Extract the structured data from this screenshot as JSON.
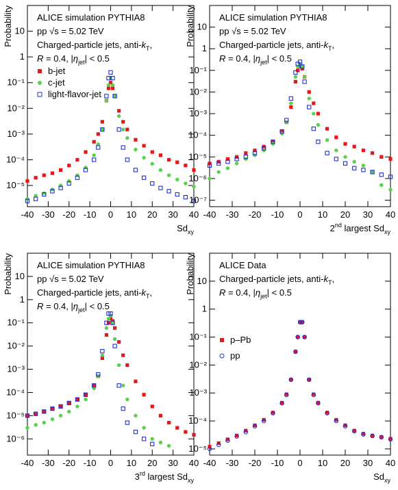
{
  "chart_data": [
    {
      "type": "scatter",
      "log_y": true,
      "ylabel": "Probability",
      "xlabel": [
        {
          "text": "Sd"
        },
        {
          "text": "xy",
          "script": "sub"
        }
      ],
      "annotation": [
        [
          {
            "text": "ALICE simulation PYTHIA8"
          }
        ],
        [
          {
            "text": "pp √s = 5.02 TeV"
          }
        ],
        [
          {
            "text": "Charged-particle jets, anti-"
          },
          {
            "text": "k",
            "italic": true
          },
          {
            "text": "T",
            "script": "sub"
          },
          {
            "text": ","
          }
        ],
        [
          {
            "text": "R",
            "italic": true
          },
          {
            "text": " = 0.4, |"
          },
          {
            "text": "η",
            "italic": true
          },
          {
            "text": "jet",
            "script": "sub"
          },
          {
            "text": "| < 0.5"
          }
        ]
      ],
      "legend": "upper left",
      "xlim": [
        -40,
        40
      ],
      "xticks": [
        -40,
        -30,
        -20,
        -10,
        0,
        10,
        20,
        30,
        40
      ],
      "ylim": [
        1.5e-06,
        100
      ],
      "yticks": [
        {
          "value": 1e-05,
          "label": "10⁻⁵"
        },
        {
          "value": 0.0001,
          "label": "10⁻⁴"
        },
        {
          "value": 0.001,
          "label": "10⁻³"
        },
        {
          "value": 0.01,
          "label": "10⁻²"
        },
        {
          "value": 0.1,
          "label": "10⁻¹"
        },
        1,
        10
      ],
      "x": [
        -40,
        -36,
        -32,
        -28,
        -24,
        -20,
        -16,
        -12,
        -8,
        -6,
        -4,
        -2,
        -1,
        0,
        1,
        2,
        4,
        6,
        8,
        12,
        16,
        20,
        24,
        28,
        32,
        36,
        40
      ],
      "series": [
        {
          "name": "b-jet",
          "color": "#e8161b",
          "marker": "square",
          "filled": true,
          "values": [
            1.5e-05,
            2e-05,
            2.5e-05,
            3e-05,
            4e-05,
            6e-05,
            0.0001,
            0.0002,
            0.0005,
            0.001,
            0.003,
            0.02,
            0.06,
            0.1,
            0.06,
            0.03,
            0.008,
            0.003,
            0.0015,
            0.0006,
            0.00035,
            0.0002,
            0.00015,
            0.0001,
            8e-05,
            6e-05,
            4e-05
          ]
        },
        {
          "name": "c-jet",
          "color": "#5ad14e",
          "marker": "circle",
          "filled": true,
          "values": [
            3e-06,
            4e-06,
            5e-06,
            7e-06,
            1e-05,
            1.5e-05,
            2.5e-05,
            5e-05,
            0.00015,
            0.0004,
            0.0015,
            0.02,
            0.08,
            0.15,
            0.08,
            0.03,
            0.005,
            0.0015,
            0.0007,
            0.00025,
            0.00012,
            7e-05,
            4e-05,
            2.5e-05,
            1.7e-05,
            1.2e-05,
            9e-06
          ]
        },
        {
          "name": "light-flavor-jet",
          "color": "#1f2fd6",
          "marker": "square",
          "filled": false,
          "values": [
            2.5e-06,
            3e-06,
            4.5e-06,
            6e-06,
            8e-06,
            1.2e-05,
            2e-05,
            4e-05,
            0.0001,
            0.0003,
            0.0015,
            0.03,
            0.15,
            0.25,
            0.15,
            0.03,
            0.0015,
            0.0003,
            0.0001,
            4e-05,
            2e-05,
            1.2e-05,
            8e-06,
            6e-06,
            4.5e-06,
            3.5e-06,
            2.5e-06
          ]
        }
      ]
    },
    {
      "type": "scatter",
      "log_y": true,
      "ylabel": "Probability",
      "xlabel": [
        {
          "text": "2"
        },
        {
          "text": "nd",
          "script": "sup"
        },
        {
          "text": " largest Sd"
        },
        {
          "text": "xy",
          "script": "sub"
        }
      ],
      "annotation": [
        [
          {
            "text": "ALICE simulation PYTHIA8"
          }
        ],
        [
          {
            "text": "pp √s = 5.02 TeV"
          }
        ],
        [
          {
            "text": "Charged-particle jets, anti-"
          },
          {
            "text": "k",
            "italic": true
          },
          {
            "text": "T",
            "script": "sub"
          },
          {
            "text": ","
          }
        ],
        [
          {
            "text": "R",
            "italic": true
          },
          {
            "text": " = 0.4, |"
          },
          {
            "text": "η",
            "italic": true
          },
          {
            "text": "jet",
            "script": "sub"
          },
          {
            "text": "| < 0.5"
          }
        ]
      ],
      "xlim": [
        -40,
        40
      ],
      "xticks": [
        -40,
        -30,
        -20,
        -10,
        0,
        10,
        20,
        30,
        40
      ],
      "ylim": [
        5e-08,
        100
      ],
      "yticks": [
        {
          "value": 1e-07,
          "label": "10⁻⁷"
        },
        {
          "value": 1e-06,
          "label": "10⁻⁶"
        },
        {
          "value": 1e-05,
          "label": "10⁻⁵"
        },
        {
          "value": 0.0001,
          "label": "10⁻⁴"
        },
        {
          "value": 0.001,
          "label": "10⁻³"
        },
        {
          "value": 0.01,
          "label": "10⁻²"
        },
        {
          "value": 0.1,
          "label": "10⁻¹"
        },
        1,
        10
      ],
      "x": [
        -40,
        -36,
        -32,
        -28,
        -24,
        -20,
        -16,
        -12,
        -8,
        -6,
        -4,
        -2,
        -1,
        0,
        1,
        2,
        4,
        6,
        8,
        12,
        16,
        20,
        24,
        28,
        32,
        36,
        40
      ],
      "series": [
        {
          "color": "#e8161b",
          "marker": "square",
          "filled": true,
          "values": [
            5e-06,
            6e-06,
            8e-06,
            1e-05,
            1.5e-05,
            2e-05,
            3e-05,
            5e-05,
            0.00015,
            0.0004,
            0.002,
            0.03,
            0.1,
            0.15,
            0.12,
            0.05,
            0.01,
            0.003,
            0.001,
            0.0002,
            8e-05,
            4e-05,
            3e-05,
            2e-05,
            1.5e-05,
            1e-05,
            8e-06
          ]
        },
        {
          "color": "#5ad14e",
          "marker": "circle",
          "filled": true,
          "values": [
            1e-06,
            2e-06,
            3e-06,
            5e-06,
            8e-06,
            1.2e-05,
            2e-05,
            4e-05,
            0.00012,
            0.0004,
            0.003,
            0.05,
            0.15,
            0.2,
            0.15,
            0.05,
            0.005,
            0.001,
            0.0003,
            6e-05,
            2e-05,
            1e-05,
            6e-06,
            4e-06,
            2e-06,
            5e-07,
            3e-07
          ]
        },
        {
          "color": "#1f2fd6",
          "marker": "square",
          "filled": false,
          "values": [
            4e-06,
            5e-06,
            6e-06,
            8e-06,
            1e-05,
            1.5e-05,
            2.5e-05,
            5e-05,
            0.00015,
            0.0005,
            0.005,
            0.08,
            0.2,
            0.25,
            0.15,
            0.03,
            0.002,
            0.0002,
            5e-05,
            1.5e-05,
            8e-06,
            5e-06,
            3e-06,
            2.5e-06,
            2e-06,
            1.5e-06,
            1.2e-06
          ]
        }
      ]
    },
    {
      "type": "scatter",
      "log_y": true,
      "ylabel": "Probability",
      "xlabel": [
        {
          "text": "3"
        },
        {
          "text": "rd",
          "script": "sup"
        },
        {
          "text": " largest Sd"
        },
        {
          "text": "xy",
          "script": "sub"
        }
      ],
      "annotation": [
        [
          {
            "text": "ALICE simulation PYTHIA8"
          }
        ],
        [
          {
            "text": "pp √s = 5.02 TeV"
          }
        ],
        [
          {
            "text": "Charged-particle jets, anti-"
          },
          {
            "text": "k",
            "italic": true
          },
          {
            "text": "T",
            "script": "sub"
          },
          {
            "text": ","
          }
        ],
        [
          {
            "text": "R",
            "italic": true
          },
          {
            "text": " = 0.4, |"
          },
          {
            "text": "η",
            "italic": true
          },
          {
            "text": "jet",
            "script": "sub"
          },
          {
            "text": "| < 0.5"
          }
        ]
      ],
      "xlim": [
        -40,
        40
      ],
      "xticks": [
        -40,
        -30,
        -20,
        -10,
        0,
        10,
        20,
        30,
        40
      ],
      "ylim": [
        2e-07,
        100
      ],
      "yticks": [
        {
          "value": 1e-06,
          "label": "10⁻⁶"
        },
        {
          "value": 1e-05,
          "label": "10⁻⁵"
        },
        {
          "value": 0.0001,
          "label": "10⁻⁴"
        },
        {
          "value": 0.001,
          "label": "10⁻³"
        },
        {
          "value": 0.01,
          "label": "10⁻²"
        },
        {
          "value": 0.1,
          "label": "10⁻¹"
        },
        1,
        10
      ],
      "x": [
        -40,
        -36,
        -32,
        -28,
        -24,
        -20,
        -16,
        -12,
        -8,
        -6,
        -4,
        -2,
        -1,
        0,
        1,
        2,
        4,
        6,
        8,
        12,
        16,
        20,
        24,
        28,
        32,
        36,
        40
      ],
      "series": [
        {
          "color": "#e8161b",
          "marker": "square",
          "filled": true,
          "values": [
            1e-05,
            1.2e-05,
            1.5e-05,
            2e-05,
            2.5e-05,
            3.5e-05,
            5e-05,
            8e-05,
            0.0002,
            0.0005,
            0.003,
            0.03,
            0.1,
            0.15,
            0.12,
            0.06,
            0.015,
            0.004,
            0.0015,
            0.0003,
            8e-05,
            2.5e-05,
            1e-05,
            5e-06,
            3e-06,
            2e-06,
            1.5e-06
          ]
        },
        {
          "color": "#5ad14e",
          "marker": "circle",
          "filled": true,
          "values": [
            3e-06,
            4e-06,
            5e-06,
            7e-06,
            1e-05,
            1.5e-05,
            2.5e-05,
            5e-05,
            0.00015,
            0.0005,
            0.004,
            0.06,
            0.15,
            0.2,
            0.1,
            0.02,
            0.0015,
            0.0002,
            5e-05,
            1e-05,
            3e-06,
            1e-06,
            7e-07,
            5e-07,
            null,
            null,
            null
          ]
        },
        {
          "color": "#1f2fd6",
          "marker": "square",
          "filled": false,
          "values": [
            1e-05,
            1.2e-05,
            1.5e-05,
            2e-05,
            2.5e-05,
            3.5e-05,
            5e-05,
            8e-05,
            0.0002,
            0.0006,
            0.006,
            0.1,
            0.25,
            0.25,
            0.1,
            0.01,
            0.0002,
            2e-05,
            5e-06,
            2e-06,
            1e-06,
            6e-07,
            null,
            null,
            null,
            null,
            null
          ]
        }
      ]
    },
    {
      "type": "scatter",
      "log_y": true,
      "ylabel": "Probability",
      "xlabel": [
        {
          "text": "Sd"
        },
        {
          "text": "xy",
          "script": "sub"
        }
      ],
      "annotation": [
        [
          {
            "text": "ALICE Data"
          }
        ],
        [
          {
            "text": "Charged-particle jets, anti-"
          },
          {
            "text": "k",
            "italic": true
          },
          {
            "text": "T",
            "script": "sub"
          },
          {
            "text": ","
          }
        ],
        [
          {
            "text": "R",
            "italic": true
          },
          {
            "text": " = 0.4, |"
          },
          {
            "text": "η",
            "italic": true
          },
          {
            "text": "jet",
            "script": "sub"
          },
          {
            "text": "| < 0.5"
          }
        ]
      ],
      "legend": "upper left",
      "xlim": [
        -40,
        40
      ],
      "xticks": [
        -40,
        -30,
        -20,
        -10,
        0,
        10,
        20,
        30,
        40
      ],
      "ylim": [
        6e-06,
        100
      ],
      "yticks": [
        {
          "value": 1e-05,
          "label": "10⁻⁵"
        },
        {
          "value": 0.0001,
          "label": "10⁻⁴"
        },
        {
          "value": 0.001,
          "label": "10⁻³"
        },
        {
          "value": 0.01,
          "label": "10⁻²"
        },
        {
          "value": 0.1,
          "label": "10⁻¹"
        },
        1,
        10
      ],
      "x": [
        -40,
        -36,
        -32,
        -28,
        -24,
        -20,
        -16,
        -12,
        -8,
        -6,
        -4,
        -2,
        -1,
        0,
        1,
        2,
        4,
        6,
        8,
        12,
        16,
        20,
        24,
        28,
        32,
        36,
        40
      ],
      "series": [
        {
          "name": "p–Pb",
          "color": "#e8161b",
          "marker": "square",
          "filled": true,
          "values": [
            1.2e-05,
            1.6e-05,
            2.2e-05,
            3e-05,
            4.5e-05,
            7e-05,
            0.00011,
            0.0002,
            0.00045,
            0.0009,
            0.003,
            0.03,
            0.1,
            0.35,
            0.35,
            0.1,
            0.003,
            0.0009,
            0.00045,
            0.0002,
            0.00011,
            7e-05,
            4.5e-05,
            3.5e-05,
            3e-05,
            2.7e-05,
            2.3e-05
          ]
        },
        {
          "name": "pp",
          "color": "#1f2fd6",
          "marker": "circle",
          "filled": false,
          "values": [
            1e-05,
            1.4e-05,
            2e-05,
            2.8e-05,
            4e-05,
            6.5e-05,
            0.0001,
            0.00019,
            0.00043,
            0.00085,
            0.003,
            0.03,
            0.1,
            0.34,
            0.34,
            0.1,
            0.003,
            0.00085,
            0.00043,
            0.00019,
            0.0001,
            6.5e-05,
            4.3e-05,
            3.3e-05,
            2.9e-05,
            2.6e-05,
            2.2e-05
          ]
        }
      ]
    }
  ]
}
